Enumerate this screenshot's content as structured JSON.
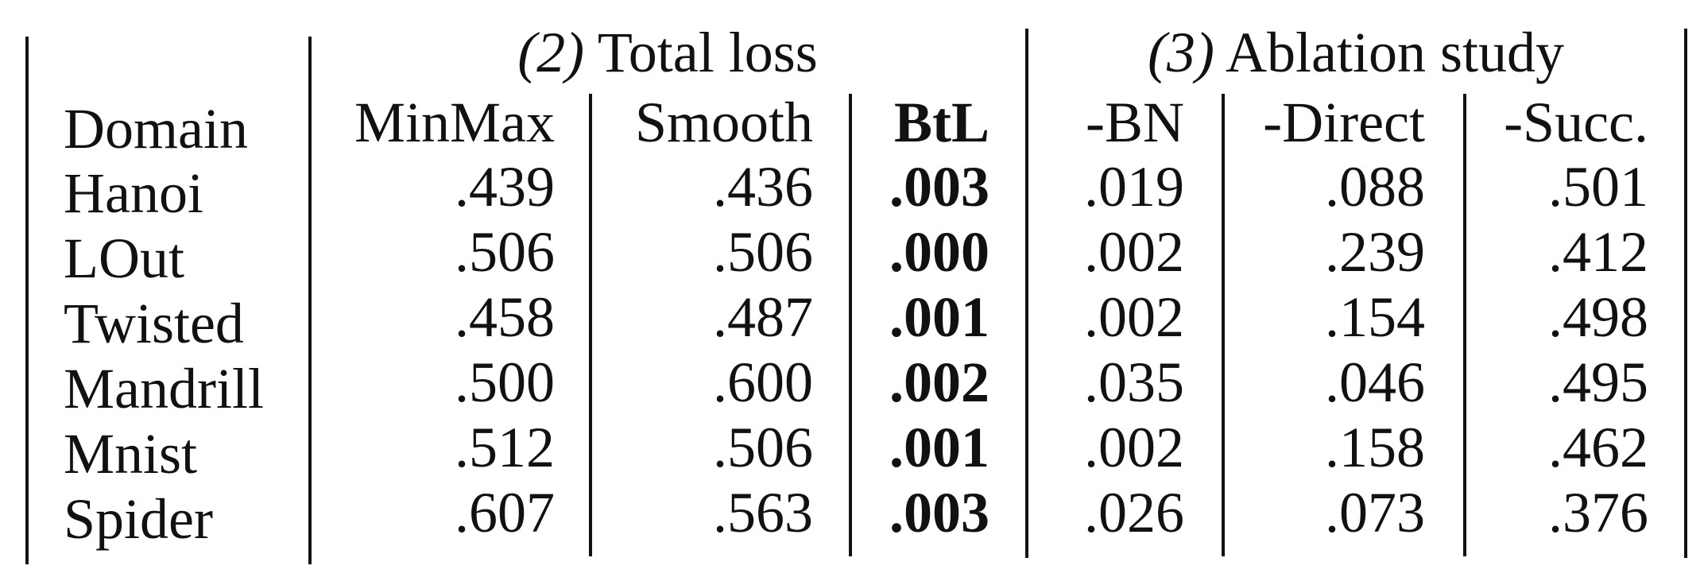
{
  "table": {
    "groups": [
      {
        "number": "(2)",
        "label": "Total loss"
      },
      {
        "number": "(3)",
        "label": "Ablation study"
      }
    ],
    "columns": [
      "Domain",
      "MinMax",
      "Smooth",
      "BtL",
      "-BN",
      "-Direct",
      "-Succ."
    ],
    "rows": [
      {
        "domain": "Hanoi",
        "values": [
          ".439",
          ".436",
          ".003",
          ".019",
          ".088",
          ".501"
        ]
      },
      {
        "domain": "LOut",
        "values": [
          ".506",
          ".506",
          ".000",
          ".002",
          ".239",
          ".412"
        ]
      },
      {
        "domain": "Twisted",
        "values": [
          ".458",
          ".487",
          ".001",
          ".002",
          ".154",
          ".498"
        ]
      },
      {
        "domain": "Mandrill",
        "values": [
          ".500",
          ".600",
          ".002",
          ".035",
          ".046",
          ".495"
        ]
      },
      {
        "domain": "Mnist",
        "values": [
          ".512",
          ".506",
          ".001",
          ".002",
          ".158",
          ".462"
        ]
      },
      {
        "domain": "Spider",
        "values": [
          ".607",
          ".563",
          ".003",
          ".026",
          ".073",
          ".376"
        ]
      }
    ],
    "bold_column": "BtL"
  }
}
